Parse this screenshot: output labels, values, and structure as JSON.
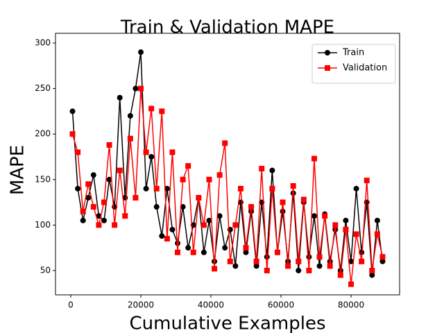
{
  "chart_data": {
    "type": "line",
    "title": "Train & Validation MAPE",
    "x_label": "Cumulative Examples",
    "y_label": "MAPE",
    "x": [
      500,
      2000,
      3500,
      5000,
      6500,
      8000,
      9500,
      11000,
      12500,
      14000,
      15500,
      17000,
      18500,
      20000,
      21500,
      23000,
      24500,
      26000,
      27500,
      29000,
      30500,
      32000,
      33500,
      35000,
      36500,
      38000,
      39500,
      41000,
      42500,
      44000,
      45500,
      47000,
      48500,
      50000,
      51500,
      53000,
      54500,
      56000,
      57500,
      59000,
      60500,
      62000,
      63500,
      65000,
      66500,
      68000,
      69500,
      71000,
      72500,
      74000,
      75500,
      77000,
      78500,
      80000,
      81500,
      83000,
      84500,
      86000,
      87500,
      89000
    ],
    "series": [
      {
        "name": "Train",
        "color": "#000000",
        "marker": "circle",
        "values": [
          225,
          140,
          105,
          130,
          155,
          110,
          105,
          150,
          120,
          240,
          130,
          220,
          250,
          290,
          140,
          175,
          120,
          88,
          140,
          95,
          80,
          120,
          75,
          100,
          130,
          70,
          105,
          60,
          110,
          75,
          95,
          55,
          125,
          70,
          115,
          55,
          125,
          65,
          160,
          70,
          115,
          60,
          135,
          50,
          125,
          65,
          110,
          55,
          112,
          60,
          95,
          50,
          105,
          60,
          140,
          70,
          125,
          45,
          105,
          60
        ]
      },
      {
        "name": "Validation",
        "color": "#ff0000",
        "marker": "square",
        "values": [
          200,
          180,
          115,
          145,
          120,
          100,
          125,
          188,
          100,
          160,
          110,
          195,
          130,
          250,
          180,
          228,
          140,
          225,
          85,
          180,
          70,
          150,
          165,
          70,
          130,
          100,
          150,
          52,
          155,
          190,
          60,
          100,
          140,
          75,
          120,
          60,
          162,
          50,
          140,
          70,
          125,
          55,
          143,
          60,
          128,
          50,
          173,
          65,
          110,
          55,
          100,
          45,
          95,
          35,
          90,
          60,
          149,
          50,
          90,
          65
        ]
      }
    ],
    "xlim": [
      -4356,
      93861
    ],
    "ylim": [
      23.3,
      310.7
    ],
    "xticks": [
      0,
      20000,
      40000,
      60000,
      80000
    ],
    "yticks": [
      50,
      100,
      150,
      200,
      250,
      300
    ],
    "legend": "upper right"
  }
}
